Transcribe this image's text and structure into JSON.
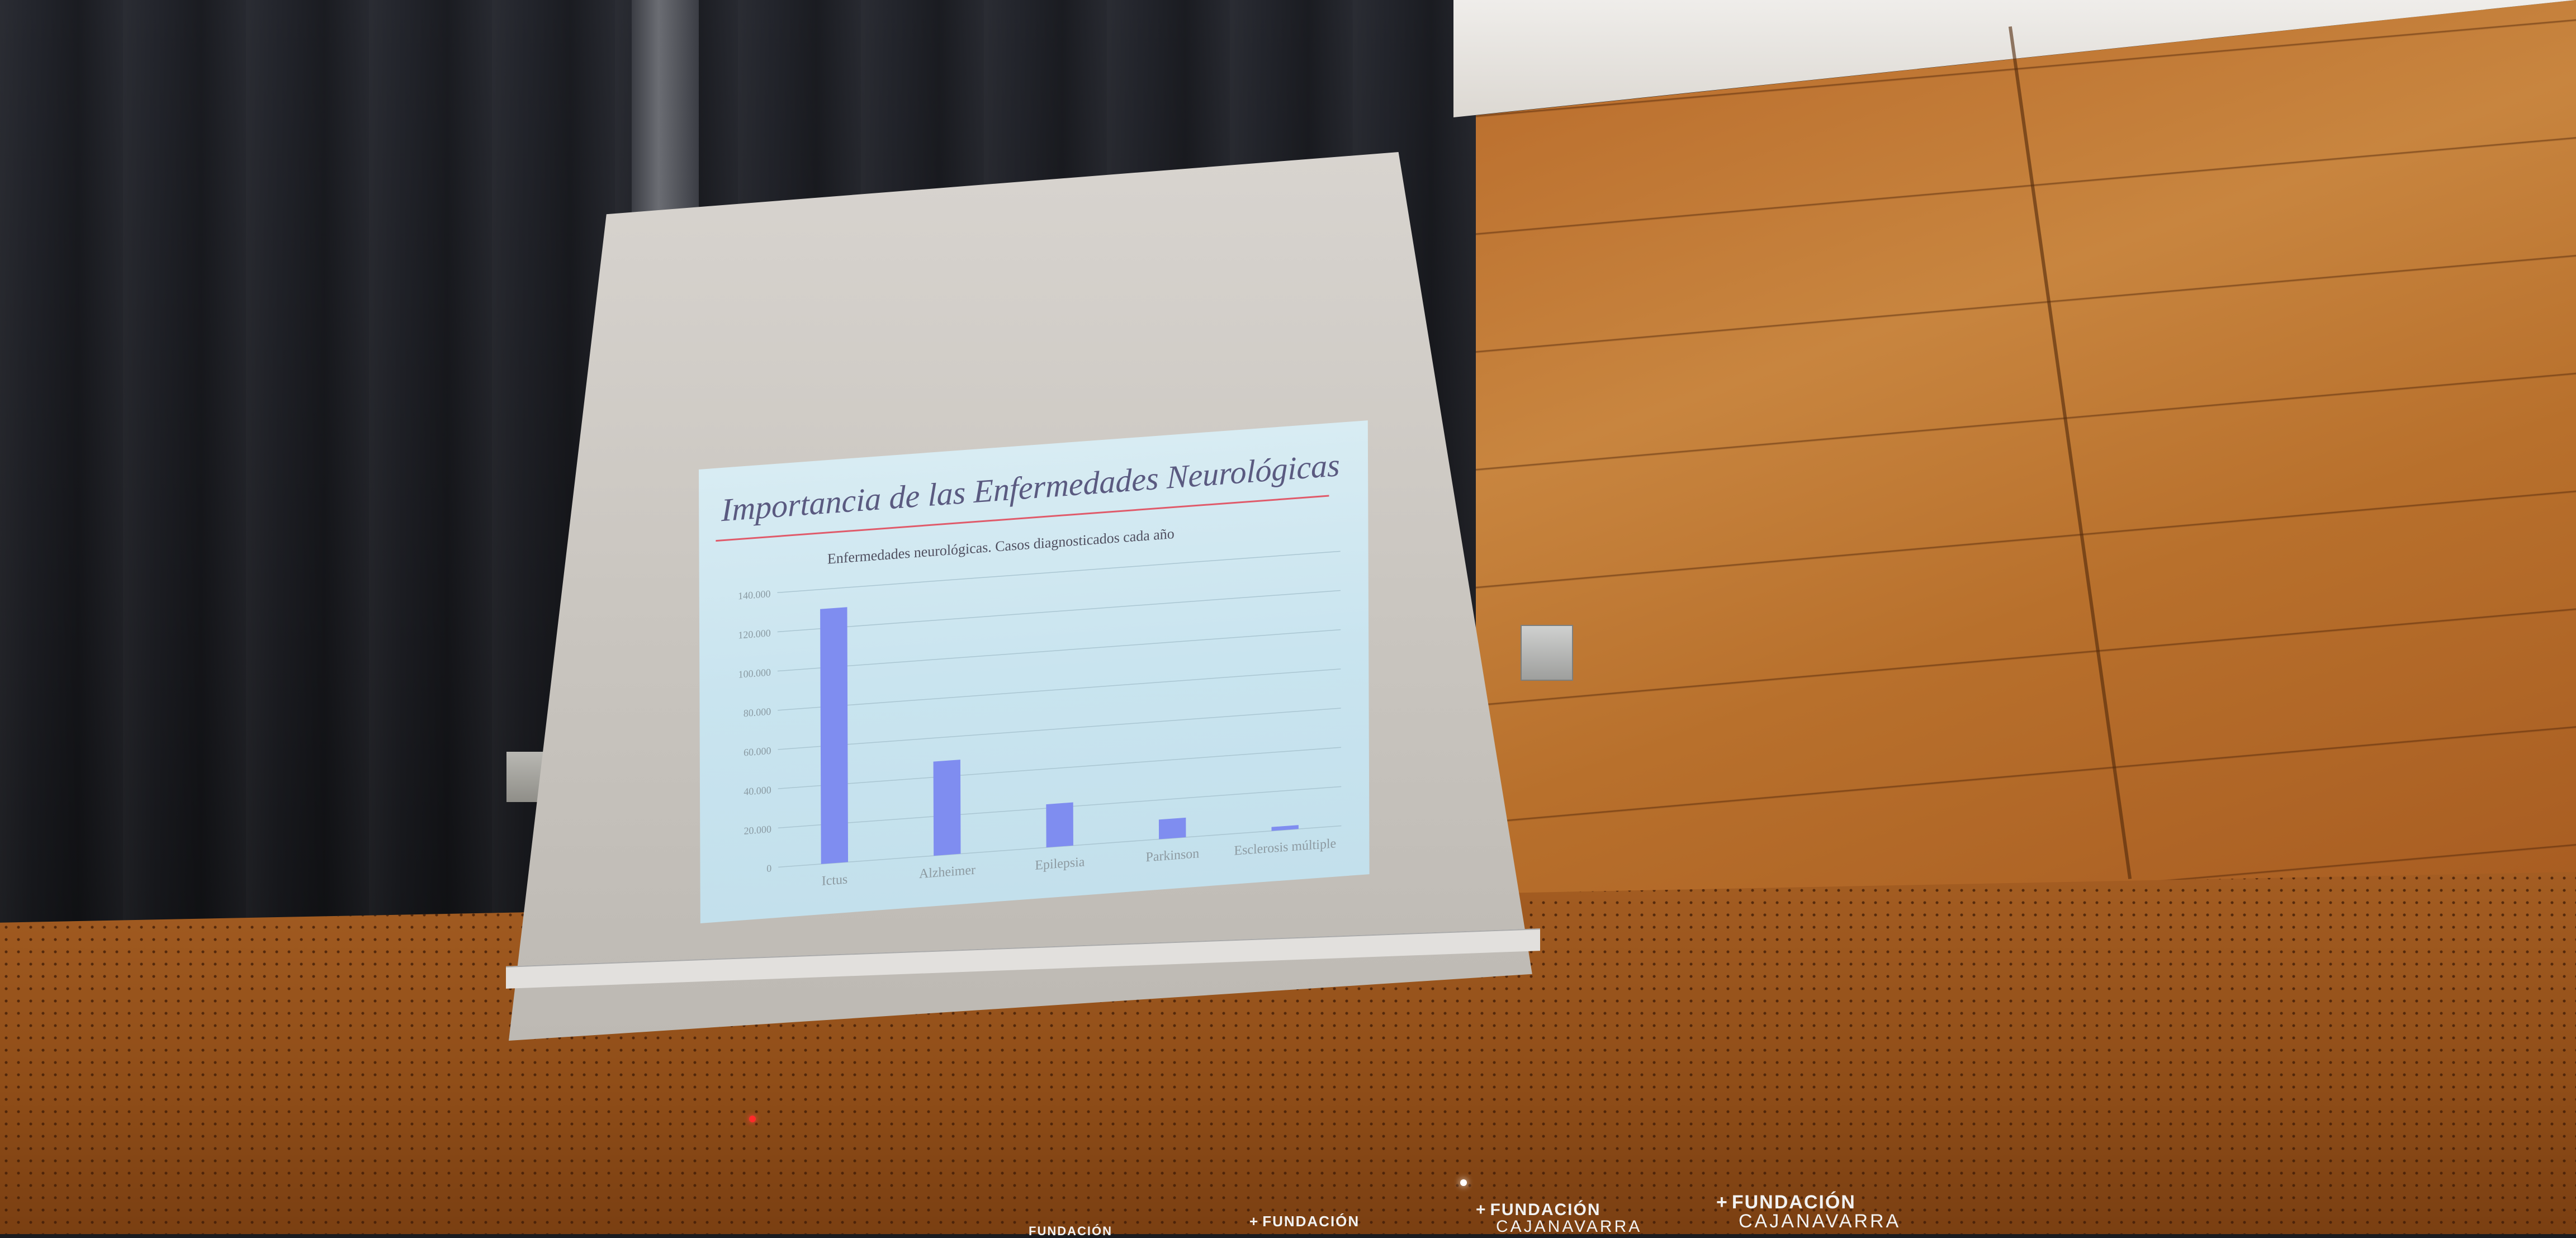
{
  "slide": {
    "title": "Importancia de las Enfermedades Neurológicas",
    "chart_title": "Enfermedades neurológicas. Casos diagnosticados cada año"
  },
  "chart_data": {
    "type": "bar",
    "title": "Enfermedades neurológicas. Casos diagnosticados cada año",
    "categories": [
      "Ictus",
      "Alzheimer",
      "Epilepsia",
      "Parkinson",
      "Esclerosis múltiple"
    ],
    "values": [
      130000,
      48000,
      22000,
      10000,
      2000
    ],
    "yticks": [
      "0",
      "20.000",
      "40.000",
      "60.000",
      "80.000",
      "100.000",
      "120.000",
      "140.000"
    ],
    "ylim": [
      0,
      140000
    ],
    "grid": true,
    "bar_color": "#7f8df0"
  },
  "signage": [
    {
      "brand": "FUNDACIÓN",
      "sub": "CAJANAVARRA"
    },
    {
      "brand": "FUNDACIÓN",
      "sub": "CAJANAVARRA"
    },
    {
      "brand": "FUNDACIÓN",
      "sub": "CAJANAVARRA"
    },
    {
      "brand": "FUNDACIÓN",
      "sub": ""
    }
  ],
  "colors": {
    "wood": "#c17a36",
    "curtain": "#1c1d22",
    "screen": "#d3cfca",
    "slide_bg": "#cde6f0",
    "title_rule": "#e05a6a"
  }
}
